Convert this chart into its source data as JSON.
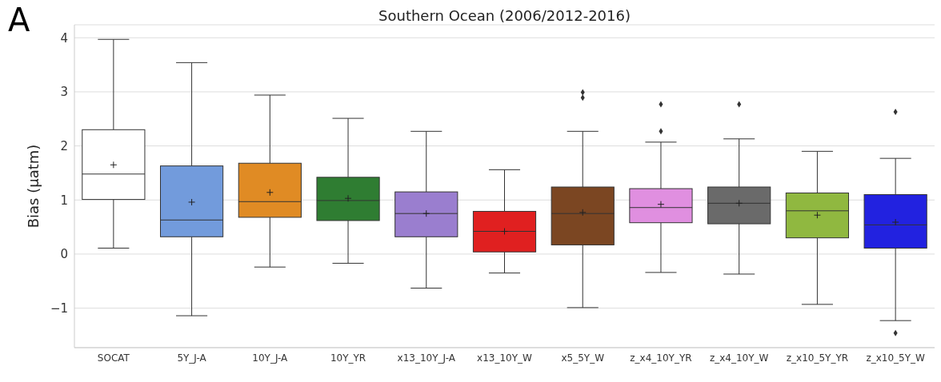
{
  "chart_data": {
    "type": "box",
    "title": "Southern Ocean (2006/2012-2016)",
    "ylabel": "Bias (μatm)",
    "annotations": [
      "A"
    ],
    "categories": [
      "SOCAT",
      "5Y_J-A",
      "10Y_J-A",
      "10Y_YR",
      "x13_10Y_J-A",
      "x13_10Y_W",
      "x5_5Y_W",
      "z_x4_10Y_YR",
      "z_x4_10Y_W",
      "z_x10_5Y_YR",
      "z_x10_5Y_W"
    ],
    "colors": [
      "#ffffff",
      "#729bdc",
      "#e08b24",
      "#2f7d32",
      "#9a7ecf",
      "#e02020",
      "#7b4622",
      "#e08fe0",
      "#6a6a6a",
      "#90b840",
      "#2222e0"
    ],
    "boxes": [
      {
        "low": 0.11,
        "q1": 1.01,
        "median": 1.48,
        "q3": 2.3,
        "high": 3.97,
        "mean": 1.65
      },
      {
        "low": -1.14,
        "q1": 0.32,
        "median": 0.63,
        "q3": 1.63,
        "high": 3.54,
        "mean": 0.96
      },
      {
        "low": -0.24,
        "q1": 0.68,
        "median": 0.97,
        "q3": 1.68,
        "high": 2.94,
        "mean": 1.14
      },
      {
        "low": -0.17,
        "q1": 0.62,
        "median": 0.99,
        "q3": 1.42,
        "high": 2.51,
        "mean": 1.03
      },
      {
        "low": -0.63,
        "q1": 0.32,
        "median": 0.75,
        "q3": 1.15,
        "high": 2.27,
        "mean": 0.75
      },
      {
        "low": -0.35,
        "q1": 0.04,
        "median": 0.42,
        "q3": 0.79,
        "high": 1.56,
        "mean": 0.42
      },
      {
        "low": -0.99,
        "q1": 0.17,
        "median": 0.75,
        "q3": 1.24,
        "high": 2.27,
        "mean": 0.77,
        "outliers": [
          2.99,
          2.89
        ]
      },
      {
        "low": -0.34,
        "q1": 0.58,
        "median": 0.86,
        "q3": 1.21,
        "high": 2.07,
        "mean": 0.92,
        "outliers": [
          2.77,
          2.27
        ]
      },
      {
        "low": -0.37,
        "q1": 0.56,
        "median": 0.94,
        "q3": 1.24,
        "high": 2.13,
        "mean": 0.94,
        "outliers": [
          2.77
        ]
      },
      {
        "low": -0.93,
        "q1": 0.3,
        "median": 0.8,
        "q3": 1.13,
        "high": 1.9,
        "mean": 0.72
      },
      {
        "low": -1.23,
        "q1": 0.11,
        "median": 0.54,
        "q3": 1.1,
        "high": 1.77,
        "mean": 0.59,
        "outliers": [
          2.63,
          -1.46
        ]
      }
    ],
    "ylim": [
      -1.73,
      4.24
    ],
    "yticks": [
      -1,
      0,
      1,
      2,
      3,
      4
    ],
    "grid": "y"
  }
}
